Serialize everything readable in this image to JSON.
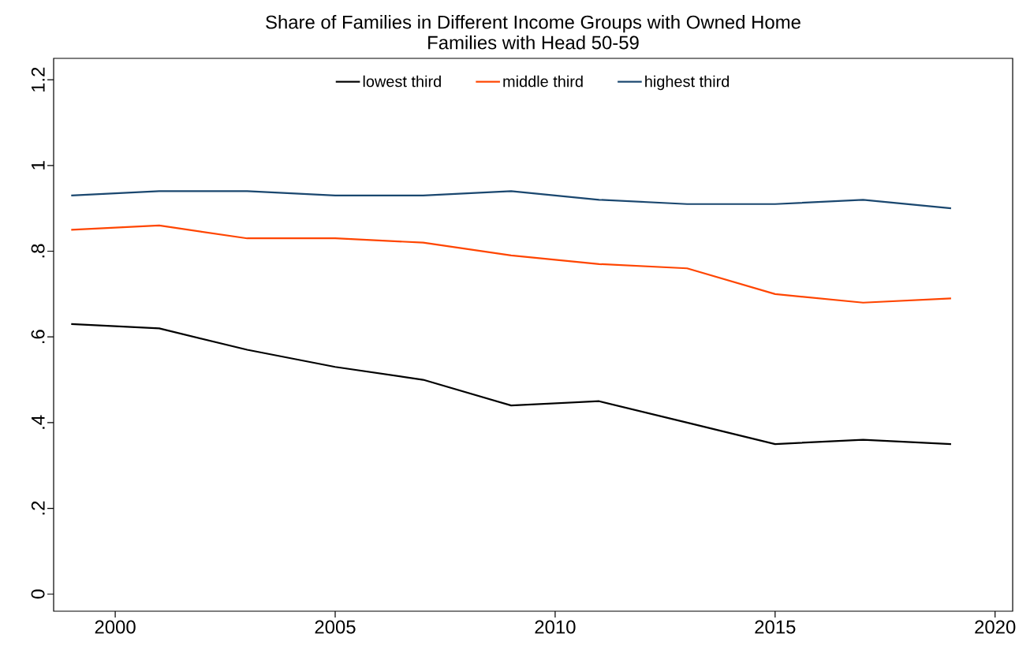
{
  "chart_data": {
    "type": "line",
    "title": "Share of Families in Different Income Groups with Owned Home",
    "subtitle": "Families with Head 50-59",
    "x": [
      1999,
      2001,
      2003,
      2005,
      2007,
      2009,
      2011,
      2013,
      2015,
      2017,
      2019
    ],
    "series": [
      {
        "name": "lowest third",
        "color": "#000000",
        "values": [
          0.63,
          0.62,
          0.57,
          0.53,
          0.5,
          0.44,
          0.45,
          0.4,
          0.35,
          0.36,
          0.35
        ]
      },
      {
        "name": "middle third",
        "color": "#ff4500",
        "values": [
          0.85,
          0.86,
          0.83,
          0.83,
          0.82,
          0.79,
          0.77,
          0.76,
          0.7,
          0.68,
          0.69
        ]
      },
      {
        "name": "highest third",
        "color": "#1a476f",
        "values": [
          0.93,
          0.94,
          0.94,
          0.93,
          0.93,
          0.94,
          0.92,
          0.91,
          0.91,
          0.92,
          0.9
        ]
      }
    ],
    "xlim": [
      1998.6,
      2020.4
    ],
    "ylim": [
      -0.04,
      1.25
    ],
    "xticks": [
      2000,
      2005,
      2010,
      2015,
      2020
    ],
    "yticks": [
      0,
      {
        "value": 0.2,
        "label": ".2"
      },
      {
        "value": 0.4,
        "label": ".4"
      },
      {
        "value": 0.6,
        "label": ".6"
      },
      {
        "value": 0.8,
        "label": ".8"
      },
      1,
      1.2
    ],
    "grid": false,
    "legend": "top",
    "marker": "none",
    "line_style": "solid"
  }
}
